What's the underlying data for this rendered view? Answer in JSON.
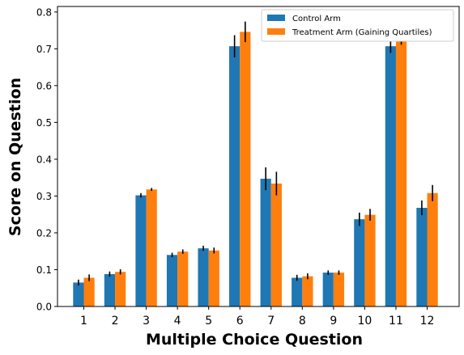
{
  "chart_data": {
    "type": "bar",
    "title": "",
    "xlabel": "Multiple Choice Question",
    "ylabel": "Score on Question",
    "categories": [
      "1",
      "2",
      "3",
      "4",
      "5",
      "6",
      "7",
      "8",
      "9",
      "10",
      "11",
      "12"
    ],
    "ylim": [
      0,
      0.815
    ],
    "yticks": [
      0.0,
      0.1,
      0.2,
      0.3,
      0.4,
      0.5,
      0.6,
      0.7,
      0.8
    ],
    "ytick_labels": [
      "0.0",
      "0.1",
      "0.2",
      "0.3",
      "0.4",
      "0.5",
      "0.6",
      "0.7",
      "0.8"
    ],
    "grid": false,
    "legend_position": "top-right",
    "series": [
      {
        "name": "Control Arm",
        "color": "#1f77b4",
        "values": [
          0.065,
          0.088,
          0.302,
          0.14,
          0.158,
          0.707,
          0.347,
          0.078,
          0.092,
          0.237,
          0.707,
          0.268
        ],
        "errors": [
          0.008,
          0.007,
          0.006,
          0.006,
          0.007,
          0.03,
          0.031,
          0.008,
          0.006,
          0.018,
          0.018,
          0.02
        ]
      },
      {
        "name": "Treatment Arm (Gaining Quartiles)",
        "color": "#ff7f0e",
        "values": [
          0.078,
          0.094,
          0.318,
          0.149,
          0.152,
          0.746,
          0.334,
          0.082,
          0.092,
          0.249,
          0.727,
          0.308
        ],
        "errors": [
          0.009,
          0.007,
          0.004,
          0.006,
          0.008,
          0.028,
          0.032,
          0.008,
          0.006,
          0.016,
          0.016,
          0.022
        ]
      }
    ]
  }
}
